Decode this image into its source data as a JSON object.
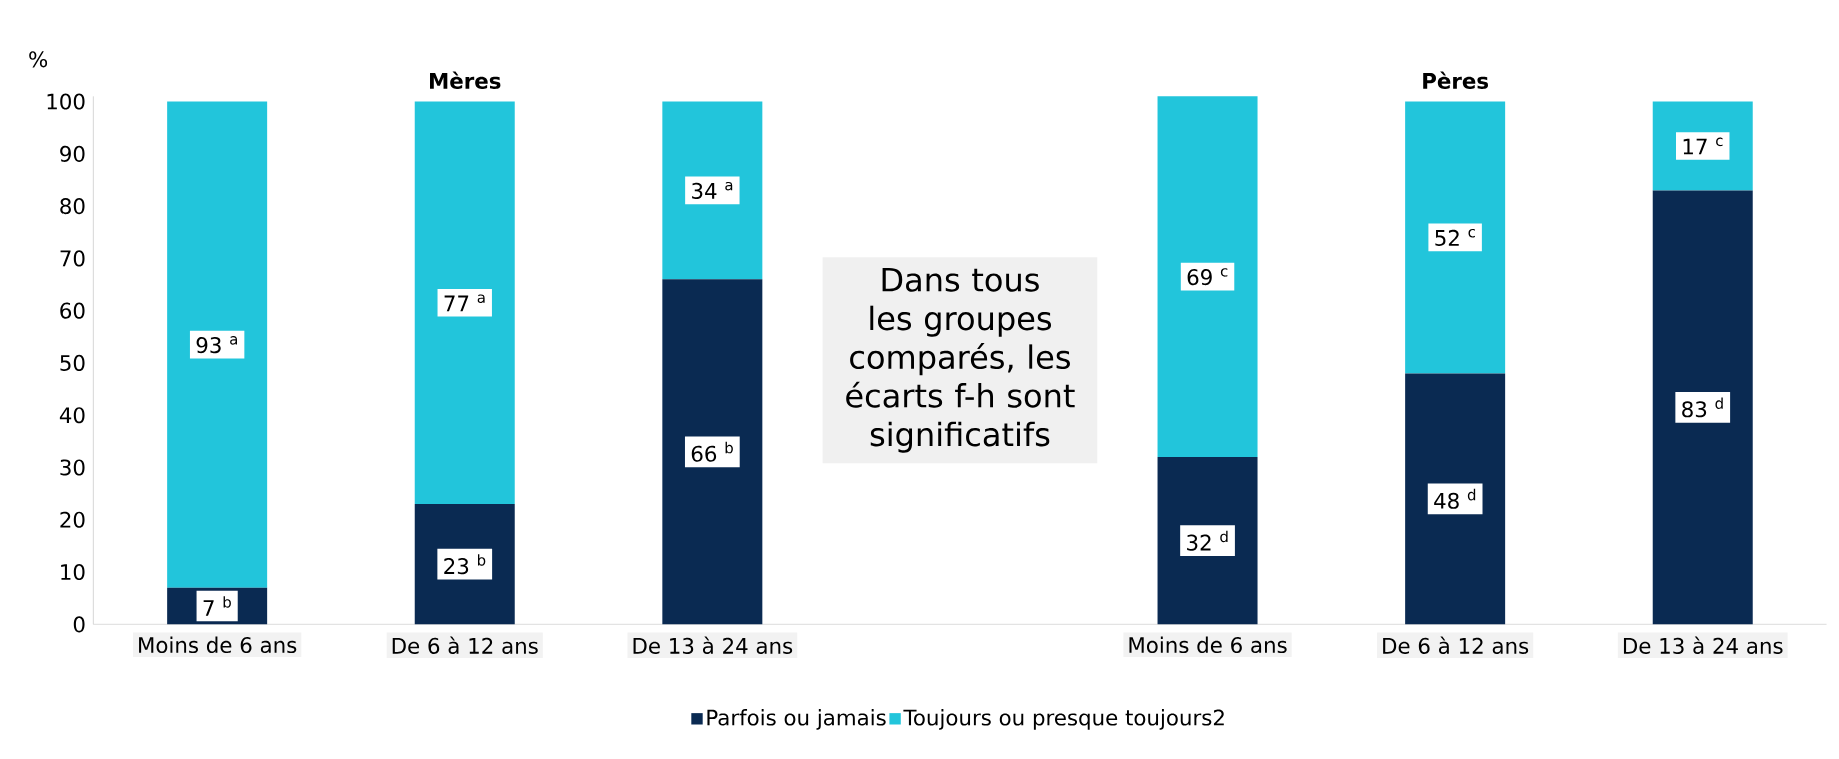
{
  "chart_data": {
    "type": "bar",
    "stacked": true,
    "ylabel": "%",
    "categories": [
      "Moins de 6 ans",
      "De 6 à 12 ans",
      "De 13 à 24 ans",
      null,
      "Moins de 6 ans",
      "De 6 à 12 ans",
      "De 13 à 24 ans"
    ],
    "series": [
      {
        "name": "Parfois ou jamais",
        "color": "#0a2a52",
        "values": [
          7,
          23,
          66,
          null,
          32,
          48,
          83
        ],
        "value_labels": [
          "7 $^{b}$",
          "23 $^{b}$",
          "66 $^{b}$",
          null,
          "32 $^{d}$",
          "48 $^{d}$",
          "83 $^{d}$"
        ]
      },
      {
        "name": "Toujours ou presque toujours2",
        "color": "#22c5db",
        "values": [
          93,
          77,
          34,
          null,
          69,
          52,
          17
        ],
        "value_labels": [
          "93 $^{a}$",
          "77 $^{a}$",
          "34 $^{a}$",
          null,
          "69 $^{c}$",
          "52 $^{c}$",
          "17 $^{c}$"
        ]
      }
    ],
    "ylim": [
      0,
      101
    ],
    "yticks": [
      0,
      10,
      20,
      30,
      40,
      50,
      60,
      70,
      80,
      90,
      100
    ],
    "legend": "bottom",
    "annotations": [
      "Mères",
      "Pères",
      "Dans tous les groupes comparés, les écarts f-h sont significatifs"
    ]
  }
}
